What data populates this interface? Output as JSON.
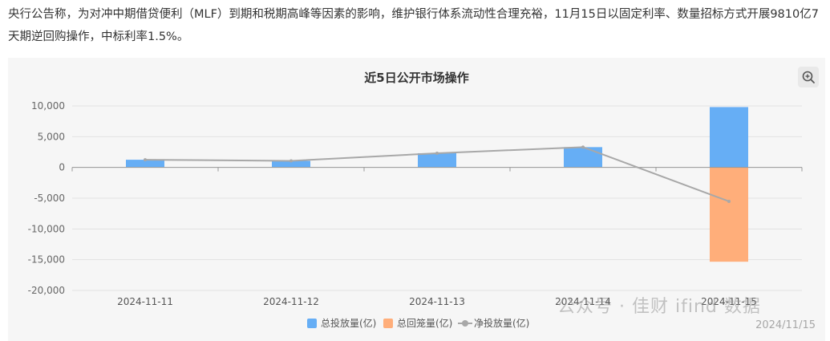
{
  "intro_text": "央行公告称，为对冲中期借贷便利（MLF）到期和税期高峰等因素的影响，维护银行体系流动性合理充裕，11月15日以固定利率、数量招标方式开展9810亿7天期逆回购操作，中标利率1.5%。",
  "colors": {
    "inject": "#66aef5",
    "withdraw": "#ffae7a",
    "net": "#a8a8a8"
  },
  "icons": {
    "zoom": "zoom-in-icon",
    "legend_line": "dot-line-icon"
  },
  "watermark": {
    "text": "公众号 · 佳财 ifind 数据",
    "date": "2024/11/15"
  },
  "chart_data": {
    "type": "bar",
    "title": "近5日公开市场操作",
    "categories": [
      "2024-11-11",
      "2024-11-12",
      "2024-11-13",
      "2024-11-14",
      "2024-11-15"
    ],
    "series": [
      {
        "name": "总投放量(亿)",
        "kind": "bar",
        "values": [
          1250,
          1070,
          2310,
          3301,
          9810
        ]
      },
      {
        "name": "总回笼量(亿)",
        "kind": "bar",
        "values": [
          0,
          0,
          0,
          0,
          -15328
        ]
      },
      {
        "name": "净投放量(亿)",
        "kind": "line",
        "values": [
          1250,
          1070,
          2310,
          3301,
          -5518
        ]
      }
    ],
    "y_ticks": [
      "10,000",
      "5,000",
      "0",
      "-5,000",
      "-10,000",
      "-15,000",
      "-20,000"
    ],
    "ylim": [
      -20000,
      10000
    ],
    "grid": true,
    "legend_position": "bottom"
  }
}
